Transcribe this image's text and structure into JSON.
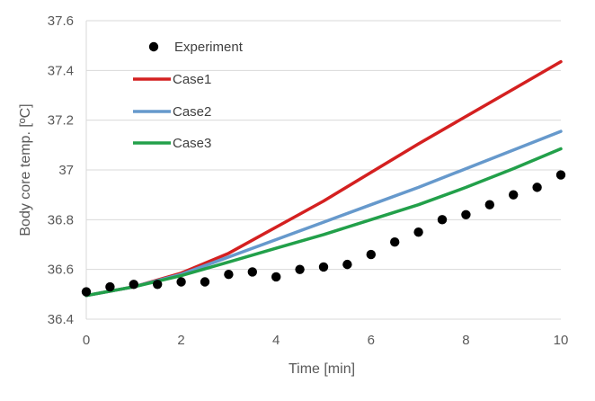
{
  "chart_data": {
    "type": "line",
    "title": "",
    "xlabel": "Time [min]",
    "ylabel": "Body core temp. [ºC]",
    "xlim": [
      0,
      10
    ],
    "ylim": [
      36.4,
      37.6
    ],
    "x_ticks": [
      "0",
      "2",
      "4",
      "6",
      "8",
      "10"
    ],
    "x_tick_values": [
      0,
      2,
      4,
      6,
      8,
      10
    ],
    "y_ticks": [
      "36.4",
      "36.6",
      "36.8",
      "37",
      "37.2",
      "37.4",
      "37.6"
    ],
    "y_tick_values": [
      36.4,
      36.6,
      36.8,
      37.0,
      37.2,
      37.4,
      37.6
    ],
    "grid": "horizontal",
    "legend_position": "top-left",
    "series": [
      {
        "name": "Experiment",
        "style": "markers",
        "color": "#000000",
        "x": [
          0,
          0.5,
          1,
          1.5,
          2,
          2.5,
          3,
          3.5,
          4,
          4.5,
          5,
          5.5,
          6,
          6.5,
          7,
          7.5,
          8,
          8.5,
          9,
          9.5,
          10
        ],
        "y": [
          36.51,
          36.53,
          36.54,
          36.54,
          36.55,
          36.55,
          36.58,
          36.59,
          36.57,
          36.6,
          36.61,
          36.62,
          36.66,
          36.71,
          36.75,
          36.8,
          36.82,
          36.86,
          36.9,
          36.93,
          36.98
        ]
      },
      {
        "name": "Case1",
        "style": "line",
        "color": "#d42020",
        "x": [
          0,
          1,
          2,
          3,
          4,
          5,
          6,
          7,
          8,
          9,
          10
        ],
        "y": [
          36.495,
          36.53,
          36.585,
          36.665,
          36.77,
          36.875,
          36.99,
          37.105,
          37.215,
          37.325,
          37.435
        ]
      },
      {
        "name": "Case2",
        "style": "line",
        "color": "#6699cc",
        "x": [
          0,
          1,
          2,
          3,
          4,
          5,
          6,
          7,
          8,
          9,
          10
        ],
        "y": [
          36.495,
          36.53,
          36.58,
          36.65,
          36.72,
          36.79,
          36.86,
          36.93,
          37.005,
          37.08,
          37.155
        ]
      },
      {
        "name": "Case3",
        "style": "line",
        "color": "#22a04a",
        "x": [
          0,
          1,
          2,
          3,
          4,
          5,
          6,
          7,
          8,
          9,
          10
        ],
        "y": [
          36.495,
          36.53,
          36.575,
          36.63,
          36.685,
          36.74,
          36.8,
          36.86,
          36.93,
          37.005,
          37.085
        ]
      }
    ]
  }
}
